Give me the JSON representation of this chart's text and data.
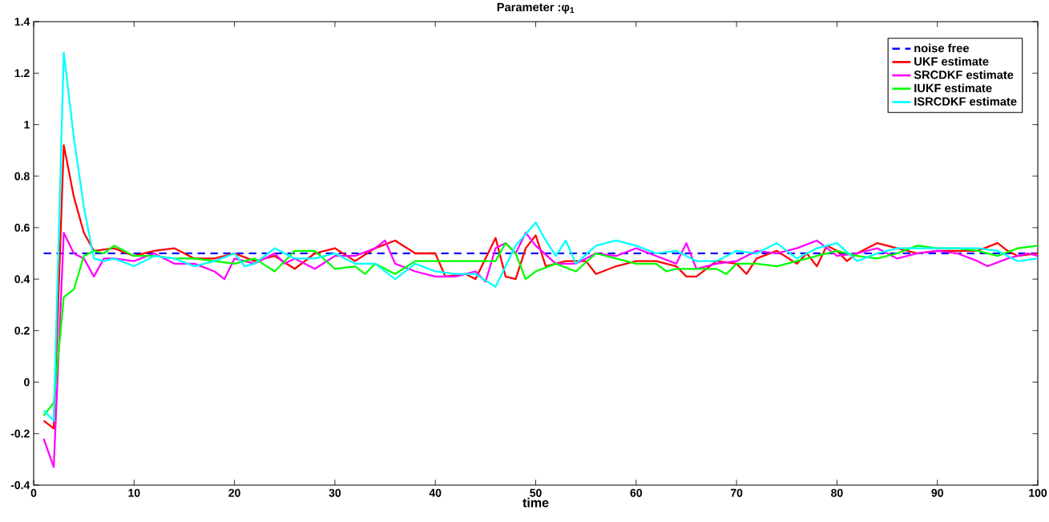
{
  "chart_data": {
    "type": "line",
    "title": "Parameter :φ$_{1}$",
    "xlabel": "time",
    "xlim": [
      0,
      100
    ],
    "ylim": [
      -0.4,
      1.4
    ],
    "xticks": [
      0,
      10,
      20,
      30,
      40,
      50,
      60,
      70,
      80,
      90,
      100
    ],
    "yticks": [
      -0.4,
      -0.2,
      0,
      0.2,
      0.4,
      0.6,
      0.8,
      1,
      1.2,
      1.4
    ],
    "grid": false,
    "legend": "top right",
    "marker": "none",
    "series": [
      {
        "name": "noise free",
        "color": "#0000ff",
        "line_style": "dashed",
        "x": [
          1,
          100
        ],
        "values": [
          0.5,
          0.5
        ]
      },
      {
        "name": "UKF estimate",
        "color": "#ff0000",
        "line_style": "solid",
        "x": [
          1,
          2,
          3,
          4,
          5,
          6,
          8,
          10,
          12,
          14,
          16,
          18,
          20,
          22,
          24,
          26,
          28,
          30,
          32,
          34,
          36,
          38,
          40,
          41,
          43,
          44,
          46,
          47,
          48,
          49,
          50,
          51,
          53,
          55,
          56,
          58,
          60,
          62,
          64,
          65,
          66,
          68,
          70,
          71,
          72,
          74,
          76,
          77,
          78,
          79,
          80,
          81,
          82,
          84,
          86,
          88,
          90,
          92,
          94,
          96,
          97,
          98,
          100
        ],
        "values": [
          -0.15,
          -0.18,
          0.92,
          0.72,
          0.58,
          0.51,
          0.52,
          0.49,
          0.51,
          0.52,
          0.48,
          0.48,
          0.5,
          0.47,
          0.49,
          0.44,
          0.5,
          0.52,
          0.47,
          0.52,
          0.55,
          0.5,
          0.5,
          0.41,
          0.42,
          0.4,
          0.56,
          0.41,
          0.4,
          0.52,
          0.57,
          0.45,
          0.47,
          0.47,
          0.42,
          0.45,
          0.47,
          0.47,
          0.45,
          0.41,
          0.41,
          0.47,
          0.46,
          0.42,
          0.48,
          0.51,
          0.46,
          0.5,
          0.45,
          0.53,
          0.51,
          0.47,
          0.5,
          0.54,
          0.52,
          0.5,
          0.51,
          0.51,
          0.51,
          0.54,
          0.51,
          0.49,
          0.5
        ]
      },
      {
        "name": "SRCDKF estimate",
        "color": "#ff00ff",
        "line_style": "solid",
        "x": [
          1,
          2,
          3,
          4,
          5,
          6,
          7,
          8,
          10,
          12,
          14,
          16,
          18,
          19,
          20,
          22,
          24,
          25,
          26,
          28,
          30,
          32,
          34,
          35,
          36,
          38,
          40,
          42,
          44,
          45,
          46,
          47,
          48,
          49,
          50,
          52,
          54,
          56,
          58,
          60,
          62,
          64,
          65,
          66,
          68,
          70,
          72,
          74,
          76,
          78,
          80,
          82,
          84,
          86,
          88,
          90,
          92,
          94,
          95,
          97,
          99,
          100
        ],
        "values": [
          -0.22,
          -0.33,
          0.58,
          0.5,
          0.48,
          0.41,
          0.48,
          0.48,
          0.47,
          0.5,
          0.46,
          0.46,
          0.43,
          0.4,
          0.48,
          0.46,
          0.5,
          0.46,
          0.48,
          0.44,
          0.49,
          0.49,
          0.52,
          0.55,
          0.46,
          0.43,
          0.41,
          0.41,
          0.43,
          0.39,
          0.52,
          0.54,
          0.5,
          0.58,
          0.53,
          0.46,
          0.46,
          0.5,
          0.49,
          0.52,
          0.49,
          0.46,
          0.54,
          0.44,
          0.46,
          0.47,
          0.51,
          0.5,
          0.52,
          0.55,
          0.49,
          0.5,
          0.52,
          0.48,
          0.5,
          0.51,
          0.5,
          0.47,
          0.45,
          0.48,
          0.5,
          0.49
        ]
      },
      {
        "name": "IUKF estimate",
        "color": "#00ff00",
        "line_style": "solid",
        "x": [
          1,
          2,
          3,
          4,
          5,
          6,
          7,
          8,
          10,
          12,
          14,
          16,
          18,
          20,
          22,
          24,
          26,
          28,
          30,
          32,
          33,
          34,
          36,
          38,
          40,
          42,
          44,
          46,
          47,
          48,
          49,
          50,
          52,
          54,
          56,
          58,
          60,
          62,
          63,
          64,
          66,
          68,
          69,
          70,
          72,
          74,
          76,
          78,
          80,
          82,
          84,
          86,
          88,
          90,
          92,
          94,
          96,
          98,
          100
        ],
        "values": [
          -0.13,
          -0.08,
          0.33,
          0.36,
          0.49,
          0.51,
          0.5,
          0.53,
          0.49,
          0.49,
          0.48,
          0.48,
          0.47,
          0.46,
          0.48,
          0.43,
          0.51,
          0.51,
          0.44,
          0.45,
          0.42,
          0.46,
          0.42,
          0.47,
          0.47,
          0.47,
          0.47,
          0.47,
          0.54,
          0.5,
          0.4,
          0.43,
          0.46,
          0.43,
          0.5,
          0.48,
          0.46,
          0.46,
          0.43,
          0.44,
          0.44,
          0.44,
          0.42,
          0.46,
          0.46,
          0.45,
          0.47,
          0.49,
          0.51,
          0.49,
          0.48,
          0.5,
          0.53,
          0.52,
          0.52,
          0.51,
          0.49,
          0.52,
          0.53
        ]
      },
      {
        "name": "ISRCDKF estimate",
        "color": "#00ffff",
        "line_style": "solid",
        "x": [
          1,
          2,
          3,
          4,
          5,
          6,
          7,
          8,
          10,
          12,
          14,
          16,
          18,
          20,
          21,
          22,
          24,
          26,
          28,
          30,
          32,
          34,
          36,
          38,
          40,
          42,
          44,
          46,
          48,
          50,
          51,
          52,
          53,
          54,
          56,
          58,
          60,
          62,
          64,
          66,
          68,
          70,
          72,
          74,
          76,
          78,
          80,
          82,
          84,
          86,
          88,
          90,
          92,
          94,
          96,
          98,
          100
        ],
        "values": [
          -0.11,
          -0.15,
          1.28,
          0.95,
          0.68,
          0.48,
          0.47,
          0.48,
          0.45,
          0.49,
          0.48,
          0.45,
          0.47,
          0.5,
          0.45,
          0.46,
          0.52,
          0.48,
          0.48,
          0.5,
          0.46,
          0.46,
          0.4,
          0.46,
          0.43,
          0.42,
          0.42,
          0.37,
          0.53,
          0.62,
          0.55,
          0.49,
          0.55,
          0.46,
          0.53,
          0.55,
          0.53,
          0.5,
          0.51,
          0.47,
          0.47,
          0.51,
          0.5,
          0.54,
          0.48,
          0.52,
          0.54,
          0.47,
          0.5,
          0.52,
          0.52,
          0.52,
          0.52,
          0.52,
          0.51,
          0.47,
          0.48
        ]
      }
    ]
  }
}
